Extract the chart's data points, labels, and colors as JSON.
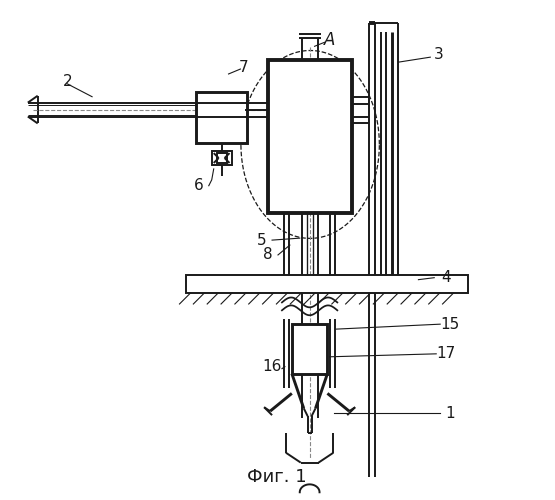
{
  "title": "Фиг. 1",
  "background": "#ffffff",
  "line_color": "#1a1a1a",
  "lw": 1.4
}
